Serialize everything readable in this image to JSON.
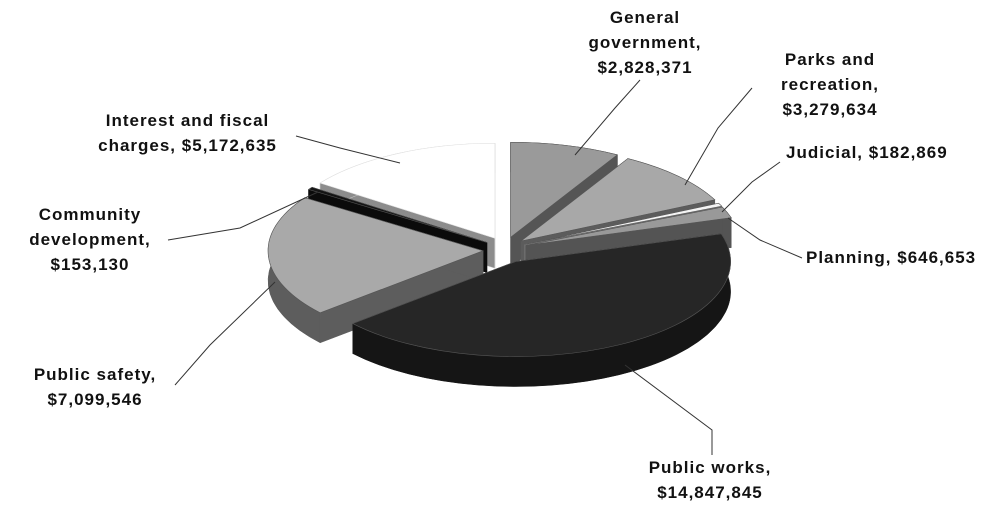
{
  "chart_data": {
    "type": "pie",
    "categories": [
      "General government,",
      "Parks and recreation,",
      "Judicial,",
      "Planning,",
      "Public works,",
      "Public safety,",
      "Community development,",
      "Interest and fiscal charges,"
    ],
    "values": [
      2828371,
      3279634,
      182869,
      646653,
      14847845,
      7099546,
      153130,
      5172635
    ],
    "value_labels": [
      "$2,828,371",
      "$3,279,634",
      "$182,869",
      "$646,653",
      "$14,847,845",
      "$7,099,546",
      "$153,130",
      "$5,172,635"
    ],
    "colors": [
      "#9a9a9a",
      "#a8a8a8",
      "#f4f4f4",
      "#999999",
      "#262626",
      "#a9a9a9",
      "#141414",
      "#ffffff"
    ]
  }
}
